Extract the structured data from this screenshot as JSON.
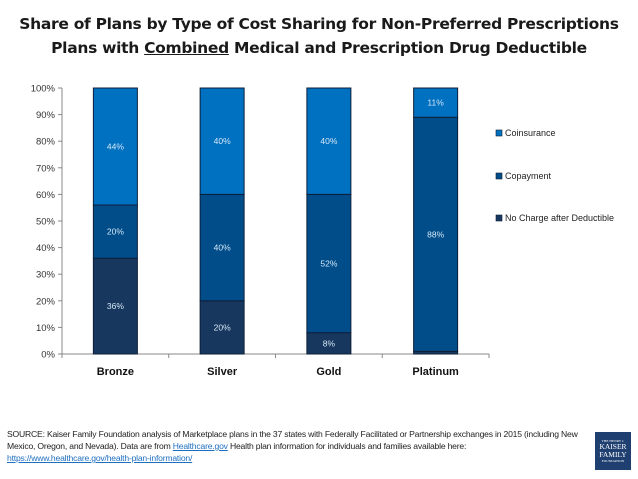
{
  "title": {
    "line1": "Share of Plans by Type of Cost Sharing for Non-Preferred Prescriptions",
    "line2_prefix": "Plans with ",
    "line2_underlined": "Combined",
    "line2_suffix": " Medical and Prescription Drug Deductible"
  },
  "chart_data": {
    "type": "bar",
    "stacked": true,
    "percent": true,
    "title": "Share of Plans by Type of Cost Sharing for Non-Preferred Prescriptions — Plans with Combined Medical and Prescription Drug Deductible",
    "xlabel": "",
    "ylabel": "",
    "categories": [
      "Bronze",
      "Silver",
      "Gold",
      "Platinum"
    ],
    "ylim": [
      0,
      100
    ],
    "yticks": [
      "0%",
      "10%",
      "20%",
      "30%",
      "40%",
      "50%",
      "60%",
      "70%",
      "80%",
      "90%",
      "100%"
    ],
    "grid": false,
    "legend_position": "right",
    "series": [
      {
        "name": "No Charge after Deductible",
        "color": "#17375E",
        "values": [
          36,
          20,
          8,
          1
        ],
        "labels": [
          "36%",
          "20%",
          "8%",
          ""
        ]
      },
      {
        "name": "Copayment",
        "color": "#004D8A",
        "values": [
          20,
          40,
          52,
          88
        ],
        "labels": [
          "20%",
          "40%",
          "52%",
          "88%"
        ]
      },
      {
        "name": "Coinsurance",
        "color": "#0070C0",
        "values": [
          44,
          40,
          40,
          11
        ],
        "labels": [
          "44%",
          "40%",
          "40%",
          "11%"
        ]
      }
    ],
    "legend_order": [
      "Coinsurance",
      "Copayment",
      "No Charge after Deductible"
    ]
  },
  "source": {
    "text1": "SOURCE: Kaiser Family Foundation analysis of Marketplace plans in the 37 states with Federally Facilitated or Partnership exchanges in 2015 (including New Mexico, Oregon, and Nevada). Data are from ",
    "link1": "Healthcare.gov",
    "text2": " Health plan information for individuals and families available here: ",
    "link2": "https://www.healthcare.gov/health-plan-information/"
  },
  "logo": {
    "line1": "THE HENRY J.",
    "line2": "KAISER",
    "line3": "FAMILY",
    "line4": "FOUNDATION"
  }
}
